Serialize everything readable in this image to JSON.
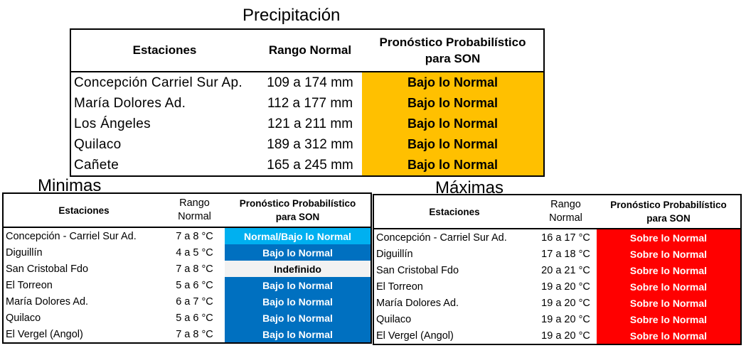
{
  "precipitacion": {
    "title": "Precipitación",
    "headers": {
      "estaciones": "Estaciones",
      "rango": "Rango Normal",
      "pronostico_line1": "Pronóstico Probabilístico",
      "pronostico_line2": "para SON"
    },
    "rows": [
      {
        "station": "Concepción Carriel Sur Ap.",
        "range": "109 a 174 mm",
        "forecast": "Bajo lo Normal",
        "bg": "#FFC000",
        "fg": "#000000"
      },
      {
        "station": "María Dolores Ad.",
        "range": "112 a 177 mm",
        "forecast": "Bajo lo Normal",
        "bg": "#FFC000",
        "fg": "#000000"
      },
      {
        "station": "Los Ángeles",
        "range": "121 a 211 mm",
        "forecast": "Bajo lo Normal",
        "bg": "#FFC000",
        "fg": "#000000"
      },
      {
        "station": "Quilaco",
        "range": "189 a 312 mm",
        "forecast": "Bajo lo Normal",
        "bg": "#FFC000",
        "fg": "#000000"
      },
      {
        "station": "Cañete",
        "range": "165 a 245 mm",
        "forecast": "Bajo lo Normal",
        "bg": "#FFC000",
        "fg": "#000000"
      }
    ]
  },
  "minimas": {
    "title": "Minimas",
    "headers": {
      "estaciones": "Estaciones",
      "rango_line1": "Rango",
      "rango_line2": "Normal",
      "pronostico_line1": "Pronóstico Probabilístico",
      "pronostico_line2": "para SON"
    },
    "rows": [
      {
        "station": "Concepción - Carriel Sur Ad.",
        "range": "7 a 8 °C",
        "forecast": "Normal/Bajo lo Normal",
        "bg": "#00B0F0",
        "fg": "#FFFFFF"
      },
      {
        "station": "Diguillín",
        "range": "4 a 5 °C",
        "forecast": "Bajo lo Normal",
        "bg": "#0070C0",
        "fg": "#FFFFFF"
      },
      {
        "station": "San Cristobal Fdo",
        "range": "7 a 8 °C",
        "forecast": "Indefinido",
        "bg": "#F2F2F2",
        "fg": "#000000"
      },
      {
        "station": "El Torreon",
        "range": "5 a 6 °C",
        "forecast": "Bajo lo Normal",
        "bg": "#0070C0",
        "fg": "#FFFFFF"
      },
      {
        "station": "María Dolores Ad.",
        "range": "6 a 7 °C",
        "forecast": "Bajo lo Normal",
        "bg": "#0070C0",
        "fg": "#FFFFFF"
      },
      {
        "station": "Quilaco",
        "range": "5 a 6 °C",
        "forecast": "Bajo lo Normal",
        "bg": "#0070C0",
        "fg": "#FFFFFF"
      },
      {
        "station": "El Vergel (Angol)",
        "range": "7 a 8 °C",
        "forecast": "Bajo lo Normal",
        "bg": "#0070C0",
        "fg": "#FFFFFF"
      }
    ]
  },
  "maximas": {
    "title": "Máximas",
    "headers": {
      "estaciones": "Estaciones",
      "rango_line1": "Rango",
      "rango_line2": "Normal",
      "pronostico_line1": "Pronóstico Probabilístico",
      "pronostico_line2": "para SON"
    },
    "rows": [
      {
        "station": "Concepción - Carriel Sur Ad.",
        "range": "16 a 17 °C",
        "forecast": "Sobre lo Normal",
        "bg": "#FF0000",
        "fg": "#FFFFFF"
      },
      {
        "station": "Diguillín",
        "range": "17 a 18 °C",
        "forecast": "Sobre lo Normal",
        "bg": "#FF0000",
        "fg": "#FFFFFF"
      },
      {
        "station": "San Cristobal Fdo",
        "range": "20 a 21 °C",
        "forecast": "Sobre lo Normal",
        "bg": "#FF0000",
        "fg": "#FFFFFF"
      },
      {
        "station": "El Torreon",
        "range": "19 a 20 °C",
        "forecast": "Sobre lo Normal",
        "bg": "#FF0000",
        "fg": "#FFFFFF"
      },
      {
        "station": "María Dolores Ad.",
        "range": "19 a 20 °C",
        "forecast": "Sobre lo Normal",
        "bg": "#FF0000",
        "fg": "#FFFFFF"
      },
      {
        "station": "Quilaco",
        "range": "19 a 20 °C",
        "forecast": "Sobre lo Normal",
        "bg": "#FF0000",
        "fg": "#FFFFFF"
      },
      {
        "station": "El Vergel (Angol)",
        "range": "19 a 20 °C",
        "forecast": "Sobre lo Normal",
        "bg": "#FF0000",
        "fg": "#FFFFFF"
      }
    ]
  }
}
